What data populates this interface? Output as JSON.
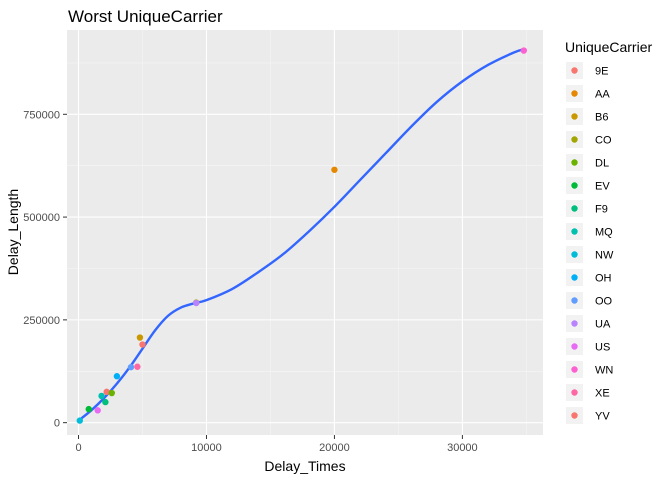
{
  "chart_data": {
    "type": "scatter",
    "title": "Worst UniqueCarrier",
    "xlabel": "Delay_Times",
    "ylabel": "Delay_Length",
    "xlim": [
      -900,
      36300
    ],
    "ylim": [
      -30000,
      955000
    ],
    "x_ticks": [
      {
        "value": 0,
        "label": "0"
      },
      {
        "value": 10000,
        "label": "10000"
      },
      {
        "value": 20000,
        "label": "20000"
      },
      {
        "value": 30000,
        "label": "30000"
      }
    ],
    "y_ticks": [
      {
        "value": 0,
        "label": "0"
      },
      {
        "value": 250000,
        "label": "250000"
      },
      {
        "value": 500000,
        "label": "500000"
      },
      {
        "value": 750000,
        "label": "750000"
      }
    ],
    "grid": true,
    "legend": {
      "title": "UniqueCarrier",
      "position": "right",
      "entries": [
        {
          "name": "9E",
          "color": "#F8766D"
        },
        {
          "name": "AA",
          "color": "#E58700"
        },
        {
          "name": "B6",
          "color": "#C99800"
        },
        {
          "name": "CO",
          "color": "#A3A500"
        },
        {
          "name": "DL",
          "color": "#6BB100"
        },
        {
          "name": "EV",
          "color": "#00BA38"
        },
        {
          "name": "F9",
          "color": "#00BF7D"
        },
        {
          "name": "MQ",
          "color": "#00C0AF"
        },
        {
          "name": "NW",
          "color": "#00BCD8"
        },
        {
          "name": "OH",
          "color": "#00B0F6"
        },
        {
          "name": "OO",
          "color": "#619CFF"
        },
        {
          "name": "UA",
          "color": "#B983FF"
        },
        {
          "name": "US",
          "color": "#E76BF3"
        },
        {
          "name": "WN",
          "color": "#FD61D1"
        },
        {
          "name": "XE",
          "color": "#FF67A4"
        },
        {
          "name": "YV",
          "color": "#F8766D"
        }
      ]
    },
    "points": [
      {
        "carrier": "9E",
        "x": 2200,
        "y": 75000
      },
      {
        "carrier": "AA",
        "x": 20000,
        "y": 615000
      },
      {
        "carrier": "B6",
        "x": 4800,
        "y": 207000
      },
      {
        "carrier": "CO",
        "x": 9200,
        "y": 292000
      },
      {
        "carrier": "DL",
        "x": 2600,
        "y": 72000
      },
      {
        "carrier": "EV",
        "x": 800,
        "y": 33000
      },
      {
        "carrier": "F9",
        "x": 2100,
        "y": 50000
      },
      {
        "carrier": "MQ",
        "x": 1800,
        "y": 65000
      },
      {
        "carrier": "NW",
        "x": 100,
        "y": 5000
      },
      {
        "carrier": "OH",
        "x": 3000,
        "y": 113000
      },
      {
        "carrier": "OO",
        "x": 4100,
        "y": 135000
      },
      {
        "carrier": "UA",
        "x": 9200,
        "y": 291000
      },
      {
        "carrier": "US",
        "x": 1500,
        "y": 30000
      },
      {
        "carrier": "WN",
        "x": 34800,
        "y": 905000
      },
      {
        "carrier": "XE",
        "x": 4600,
        "y": 136000
      },
      {
        "carrier": "YV",
        "x": 5000,
        "y": 190000
      }
    ],
    "smooth_line": {
      "color": "#3366FF",
      "x": [
        0,
        1000,
        2000,
        3000,
        4000,
        5000,
        6000,
        7000,
        8000,
        9000,
        10000,
        12000,
        14000,
        16000,
        18000,
        20000,
        22000,
        24000,
        26000,
        28000,
        30000,
        32000,
        34000,
        34800
      ],
      "y": [
        5000,
        30000,
        60000,
        95000,
        135000,
        180000,
        225000,
        260000,
        280000,
        290000,
        298000,
        325000,
        365000,
        410000,
        465000,
        525000,
        590000,
        655000,
        720000,
        780000,
        830000,
        870000,
        900000,
        908000
      ]
    }
  }
}
